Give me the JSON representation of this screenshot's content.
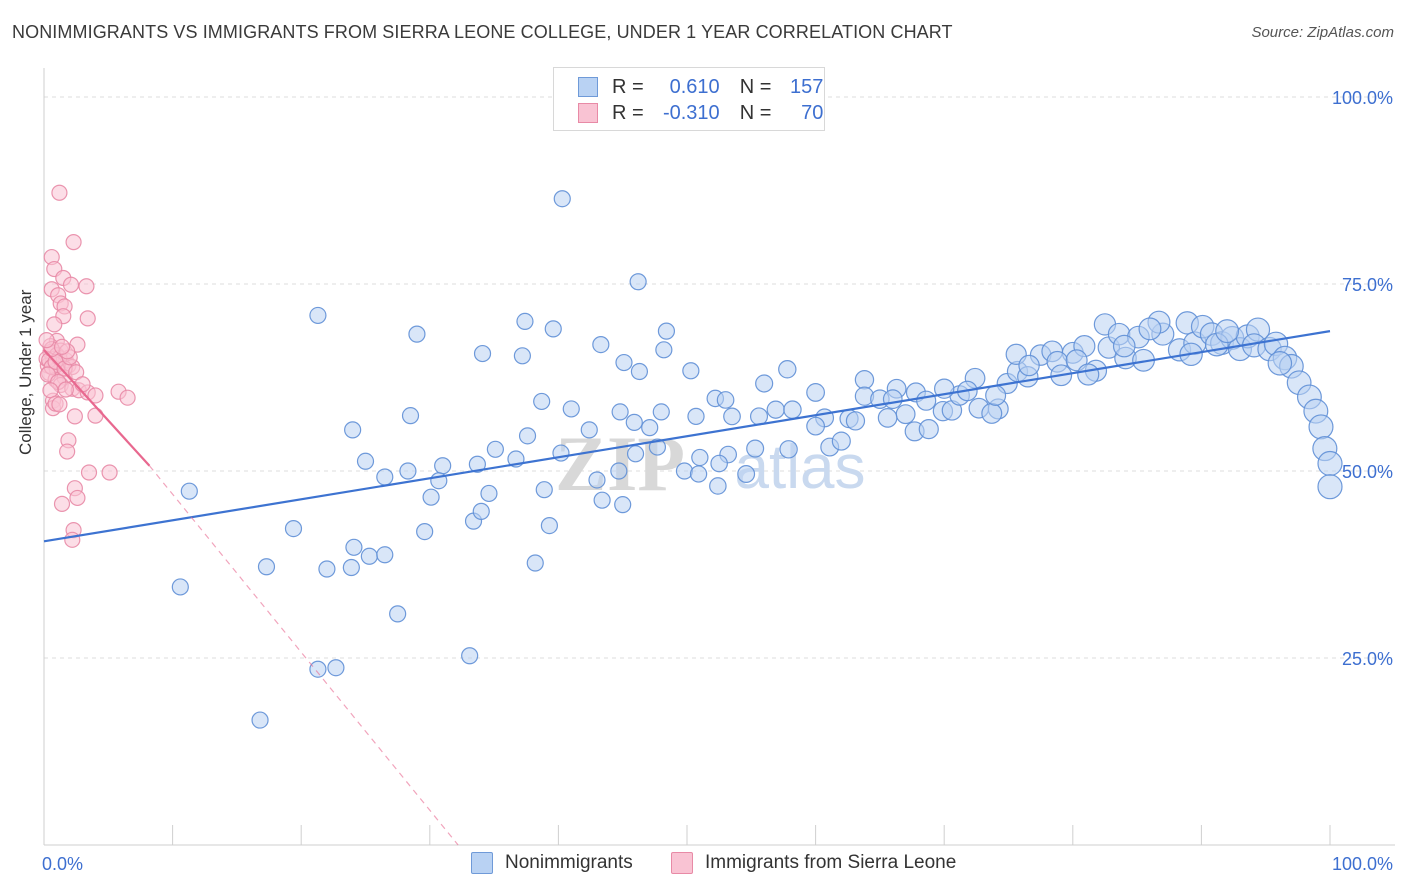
{
  "title": "NONIMMIGRANTS VS IMMIGRANTS FROM SIERRA LEONE COLLEGE, UNDER 1 YEAR CORRELATION CHART",
  "source": "Source: ZipAtlas.com",
  "watermark": {
    "zip": "ZIP",
    "atlas": "atlas"
  },
  "legend": {
    "rows": [
      {
        "r_label": "R =",
        "r_value": "0.610",
        "n_label": "N =",
        "n_value": "157",
        "color_fill": "#b9d2f3",
        "color_stroke": "#6f9ad8"
      },
      {
        "r_label": "R =",
        "r_value": "-0.310",
        "n_label": "N =",
        "n_value": "70",
        "color_fill": "#f9c3d3",
        "color_stroke": "#e88aa6"
      }
    ]
  },
  "bottom_legend": [
    {
      "label": "Nonimmigrants",
      "color_fill": "#b9d2f3",
      "color_stroke": "#6f9ad8"
    },
    {
      "label": "Immigrants from Sierra Leone",
      "color_fill": "#f9c3d3",
      "color_stroke": "#e88aa6"
    }
  ],
  "chart_data": {
    "type": "scatter",
    "title": "NONIMMIGRANTS VS IMMIGRANTS FROM SIERRA LEONE COLLEGE, UNDER 1 YEAR CORRELATION CHART",
    "xlabel": "",
    "ylabel": "College, Under 1 year",
    "xlim": [
      0,
      100
    ],
    "ylim": [
      0,
      100
    ],
    "x_tick_labels": [
      "0.0%",
      "100.0%"
    ],
    "y_tick_labels": [
      "100.0%",
      "75.0%",
      "50.0%",
      "25.0%"
    ],
    "y_ticks": [
      100,
      75,
      50,
      25
    ],
    "grid": "horizontal dashed",
    "legend_position": "top-center",
    "colors": {
      "blue": "#3d73d1",
      "pink": "#e8688f",
      "blue_fill": "#b9d2f3",
      "pink_fill": "#f9c3d3"
    },
    "series": [
      {
        "name": "Nonimmigrants",
        "r": 0.61,
        "n": 157,
        "trend": {
          "x": [
            0,
            100
          ],
          "y": [
            40.6,
            68.7
          ],
          "style": "solid"
        },
        "points": [
          [
            40.3,
            86.4
          ],
          [
            46.2,
            75.3
          ],
          [
            21.3,
            70.8
          ],
          [
            29.0,
            68.3
          ],
          [
            37.4,
            70.0
          ],
          [
            39.6,
            69.0
          ],
          [
            43.3,
            66.9
          ],
          [
            48.4,
            68.7
          ],
          [
            34.1,
            65.7
          ],
          [
            37.2,
            65.4
          ],
          [
            46.3,
            63.3
          ],
          [
            48.2,
            66.2
          ],
          [
            45.1,
            64.5
          ],
          [
            50.3,
            63.4
          ],
          [
            57.8,
            63.6
          ],
          [
            56.0,
            61.7
          ],
          [
            38.7,
            59.3
          ],
          [
            41.0,
            58.3
          ],
          [
            44.8,
            57.9
          ],
          [
            48.0,
            57.9
          ],
          [
            50.7,
            57.3
          ],
          [
            52.2,
            59.7
          ],
          [
            53.0,
            59.5
          ],
          [
            53.5,
            57.3
          ],
          [
            55.6,
            57.3
          ],
          [
            56.9,
            58.2
          ],
          [
            58.2,
            58.2
          ],
          [
            60.0,
            60.5
          ],
          [
            60.7,
            57.1
          ],
          [
            62.6,
            57.0
          ],
          [
            63.8,
            62.2
          ],
          [
            63.8,
            60.0
          ],
          [
            65.0,
            59.6
          ],
          [
            66.3,
            61.0
          ],
          [
            67.0,
            57.6
          ],
          [
            67.8,
            60.5
          ],
          [
            68.6,
            59.4
          ],
          [
            69.9,
            58.0
          ],
          [
            70.6,
            58.1
          ],
          [
            71.2,
            60.1
          ],
          [
            72.7,
            58.4
          ],
          [
            72.4,
            62.4
          ],
          [
            74.2,
            58.3
          ],
          [
            73.7,
            57.7
          ],
          [
            74.9,
            61.7
          ],
          [
            75.7,
            63.3
          ],
          [
            76.5,
            62.6
          ],
          [
            77.5,
            65.5
          ],
          [
            75.6,
            65.6
          ],
          [
            78.4,
            66.0
          ],
          [
            80.0,
            65.8
          ],
          [
            78.8,
            64.6
          ],
          [
            80.9,
            66.7
          ],
          [
            80.3,
            64.8
          ],
          [
            81.8,
            63.4
          ],
          [
            82.8,
            66.5
          ],
          [
            84.1,
            65.1
          ],
          [
            82.5,
            69.6
          ],
          [
            83.6,
            68.3
          ],
          [
            85.1,
            67.9
          ],
          [
            85.5,
            64.8
          ],
          [
            87.0,
            68.3
          ],
          [
            86.7,
            69.9
          ],
          [
            88.3,
            66.2
          ],
          [
            88.9,
            69.8
          ],
          [
            89.5,
            67.1
          ],
          [
            90.1,
            69.3
          ],
          [
            90.8,
            68.3
          ],
          [
            91.6,
            67.1
          ],
          [
            92.4,
            67.8
          ],
          [
            93.0,
            66.3
          ],
          [
            93.6,
            68.0
          ],
          [
            94.4,
            68.9
          ],
          [
            94.1,
            66.8
          ],
          [
            95.3,
            66.3
          ],
          [
            95.8,
            67.0
          ],
          [
            96.5,
            65.1
          ],
          [
            97.0,
            64.0
          ],
          [
            97.6,
            61.8
          ],
          [
            98.4,
            59.9
          ],
          [
            98.9,
            58.0
          ],
          [
            99.3,
            55.9
          ],
          [
            99.6,
            53.0
          ],
          [
            100.0,
            51.0
          ],
          [
            100.0,
            47.9
          ],
          [
            11.3,
            47.3
          ],
          [
            19.4,
            42.3
          ],
          [
            28.5,
            57.4
          ],
          [
            31.0,
            50.7
          ],
          [
            28.3,
            50.0
          ],
          [
            30.7,
            48.7
          ],
          [
            34.6,
            47.0
          ],
          [
            36.7,
            51.6
          ],
          [
            35.1,
            52.9
          ],
          [
            37.6,
            54.7
          ],
          [
            40.2,
            52.4
          ],
          [
            42.4,
            55.5
          ],
          [
            44.7,
            50.0
          ],
          [
            43.0,
            48.8
          ],
          [
            46.0,
            52.3
          ],
          [
            47.7,
            53.2
          ],
          [
            49.8,
            50.0
          ],
          [
            51.0,
            51.8
          ],
          [
            52.4,
            48.0
          ],
          [
            53.2,
            52.2
          ],
          [
            54.6,
            49.6
          ],
          [
            55.3,
            53.0
          ],
          [
            57.9,
            52.9
          ],
          [
            60.0,
            56.0
          ],
          [
            61.1,
            53.2
          ],
          [
            62.0,
            54.0
          ],
          [
            63.1,
            56.7
          ],
          [
            65.6,
            57.1
          ],
          [
            67.7,
            55.3
          ],
          [
            68.8,
            55.6
          ],
          [
            33.7,
            50.9
          ],
          [
            30.1,
            46.5
          ],
          [
            24.0,
            55.5
          ],
          [
            25.0,
            51.3
          ],
          [
            26.5,
            49.2
          ],
          [
            33.4,
            43.3
          ],
          [
            34.0,
            44.6
          ],
          [
            29.6,
            41.9
          ],
          [
            38.9,
            47.5
          ],
          [
            39.3,
            42.7
          ],
          [
            43.4,
            46.1
          ],
          [
            45.0,
            45.5
          ],
          [
            24.1,
            39.8
          ],
          [
            25.3,
            38.6
          ],
          [
            23.9,
            37.1
          ],
          [
            22.0,
            36.9
          ],
          [
            26.5,
            38.8
          ],
          [
            38.2,
            37.7
          ],
          [
            17.3,
            37.2
          ],
          [
            10.6,
            34.5
          ],
          [
            27.5,
            30.9
          ],
          [
            22.7,
            23.7
          ],
          [
            21.3,
            23.5
          ],
          [
            33.1,
            25.3
          ],
          [
            16.8,
            16.7
          ],
          [
            50.9,
            49.6
          ],
          [
            52.5,
            51.0
          ],
          [
            47.1,
            55.8
          ],
          [
            45.9,
            56.5
          ],
          [
            66.0,
            59.6
          ],
          [
            70.0,
            61.0
          ],
          [
            71.8,
            60.7
          ],
          [
            86.0,
            69.0
          ],
          [
            89.2,
            65.6
          ],
          [
            91.2,
            66.9
          ],
          [
            92.0,
            68.7
          ],
          [
            96.1,
            64.4
          ],
          [
            84.0,
            66.7
          ],
          [
            81.2,
            62.9
          ],
          [
            79.1,
            62.8
          ],
          [
            76.6,
            64.1
          ],
          [
            74.0,
            60.1
          ]
        ]
      },
      {
        "name": "Immigrants from Sierra Leone",
        "r": -0.31,
        "n": 70,
        "trend": {
          "x": [
            0,
            8.2
          ],
          "y": [
            66.2,
            50.7
          ],
          "style": "solid",
          "extended": {
            "x": [
              8.2,
              32.2
            ],
            "y": [
              50.7,
              0.0
            ],
            "style": "dashed"
          }
        },
        "points": [
          [
            1.2,
            87.2
          ],
          [
            2.3,
            80.6
          ],
          [
            0.6,
            78.6
          ],
          [
            0.8,
            77.0
          ],
          [
            1.5,
            75.8
          ],
          [
            3.3,
            74.7
          ],
          [
            0.6,
            74.3
          ],
          [
            1.1,
            73.5
          ],
          [
            1.3,
            72.4
          ],
          [
            2.1,
            74.9
          ],
          [
            1.6,
            72.0
          ],
          [
            1.5,
            70.7
          ],
          [
            3.4,
            70.4
          ],
          [
            0.8,
            69.6
          ],
          [
            1.0,
            67.4
          ],
          [
            2.6,
            66.9
          ],
          [
            0.5,
            66.7
          ],
          [
            1.3,
            66.1
          ],
          [
            0.5,
            65.9
          ],
          [
            0.7,
            65.0
          ],
          [
            1.0,
            65.5
          ],
          [
            1.4,
            64.4
          ],
          [
            1.7,
            64.8
          ],
          [
            0.3,
            64.1
          ],
          [
            0.8,
            64.3
          ],
          [
            1.9,
            64.1
          ],
          [
            2.2,
            63.9
          ],
          [
            0.4,
            63.1
          ],
          [
            1.0,
            63.6
          ],
          [
            0.9,
            62.2
          ],
          [
            1.6,
            62.5
          ],
          [
            1.3,
            61.5
          ],
          [
            2.2,
            61.0
          ],
          [
            2.7,
            60.8
          ],
          [
            0.7,
            59.4
          ],
          [
            3.4,
            60.5
          ],
          [
            5.8,
            60.6
          ],
          [
            4.0,
            60.1
          ],
          [
            6.5,
            59.8
          ],
          [
            0.7,
            58.4
          ],
          [
            2.4,
            57.3
          ],
          [
            4.0,
            57.4
          ],
          [
            1.9,
            54.1
          ],
          [
            1.8,
            52.6
          ],
          [
            3.5,
            49.8
          ],
          [
            5.1,
            49.8
          ],
          [
            2.4,
            47.7
          ],
          [
            2.6,
            46.4
          ],
          [
            1.4,
            45.6
          ],
          [
            2.3,
            42.1
          ],
          [
            2.2,
            40.8
          ],
          [
            0.2,
            65.0
          ],
          [
            0.4,
            64.8
          ],
          [
            0.6,
            63.9
          ],
          [
            1.2,
            65.1
          ],
          [
            0.9,
            64.6
          ],
          [
            1.6,
            63.7
          ],
          [
            2.0,
            65.2
          ],
          [
            0.3,
            62.9
          ],
          [
            1.1,
            61.9
          ],
          [
            0.5,
            60.8
          ],
          [
            1.8,
            66.0
          ],
          [
            0.6,
            66.3
          ],
          [
            1.4,
            66.6
          ],
          [
            0.2,
            67.5
          ],
          [
            2.5,
            63.2
          ],
          [
            1.7,
            60.9
          ],
          [
            0.9,
            59.0
          ],
          [
            3.0,
            61.6
          ],
          [
            1.2,
            58.9
          ]
        ]
      }
    ]
  }
}
